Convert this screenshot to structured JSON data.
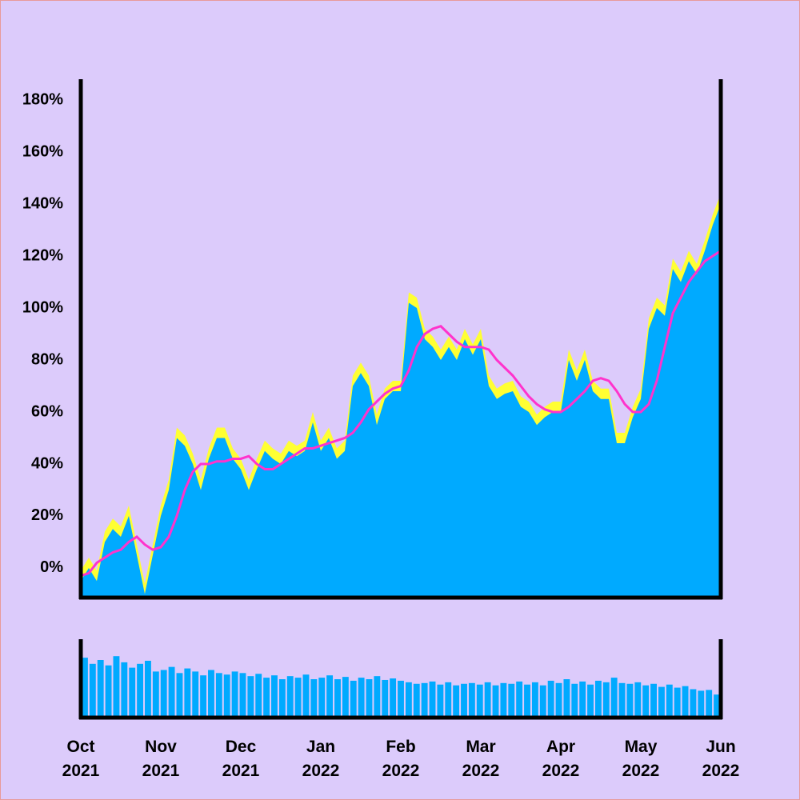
{
  "chart_data": [
    {
      "type": "area",
      "categories": [
        "Oct 2021",
        null,
        null,
        null,
        null,
        null,
        null,
        null,
        null,
        null,
        "Nov 2021",
        null,
        null,
        null,
        null,
        null,
        null,
        null,
        null,
        null,
        "Dec 2021",
        null,
        null,
        null,
        null,
        null,
        null,
        null,
        null,
        null,
        "Jan 2022",
        null,
        null,
        null,
        null,
        null,
        null,
        null,
        null,
        null,
        "Feb 2022",
        null,
        null,
        null,
        null,
        null,
        null,
        null,
        null,
        null,
        "Mar 2022",
        null,
        null,
        null,
        null,
        null,
        null,
        null,
        null,
        null,
        "Apr 2022",
        null,
        null,
        null,
        null,
        null,
        null,
        null,
        null,
        null,
        "May 2022",
        null,
        null,
        null,
        null,
        null,
        null,
        null,
        null,
        null,
        "Jun 2022"
      ],
      "series": [
        {
          "type": "area",
          "color": "#ffff33",
          "values": [
            -1,
            4,
            -1,
            14,
            19,
            16,
            24,
            9,
            -6,
            9,
            24,
            34,
            54,
            51,
            44,
            34,
            46,
            54,
            54,
            46,
            42,
            34,
            42,
            49,
            46,
            44,
            49,
            47,
            49,
            60,
            49,
            54,
            46,
            49,
            74,
            79,
            74,
            59,
            69,
            72,
            72,
            106,
            104,
            92,
            89,
            84,
            89,
            84,
            92,
            86,
            92,
            74,
            69,
            71,
            72,
            66,
            64,
            59,
            62,
            64,
            64,
            84,
            76,
            84,
            72,
            69,
            69,
            52,
            52,
            62,
            69,
            96,
            104,
            101,
            119,
            114,
            122,
            117,
            126,
            136,
            144
          ]
        },
        {
          "type": "area",
          "color": "#00aaff",
          "values": [
            -5,
            0,
            -5,
            10,
            15,
            12,
            20,
            5,
            -10,
            5,
            20,
            30,
            50,
            47,
            40,
            30,
            42,
            50,
            50,
            42,
            38,
            30,
            38,
            45,
            42,
            40,
            45,
            43,
            45,
            56,
            45,
            50,
            42,
            45,
            70,
            75,
            70,
            55,
            65,
            68,
            68,
            102,
            100,
            88,
            85,
            80,
            85,
            80,
            88,
            82,
            88,
            70,
            65,
            67,
            68,
            62,
            60,
            55,
            58,
            60,
            60,
            80,
            72,
            80,
            68,
            65,
            65,
            48,
            48,
            58,
            65,
            92,
            100,
            97,
            115,
            110,
            118,
            113,
            122,
            132,
            140
          ]
        },
        {
          "type": "line",
          "color": "#ff33cc",
          "values": [
            -3,
            -2,
            2,
            4,
            6,
            7,
            10,
            12,
            9,
            7,
            8,
            12,
            20,
            30,
            37,
            40,
            40,
            41,
            41,
            42,
            42,
            43,
            40,
            38,
            38,
            40,
            42,
            44,
            46,
            46,
            47,
            48,
            49,
            50,
            52,
            56,
            61,
            64,
            67,
            69,
            70,
            76,
            85,
            90,
            92,
            93,
            90,
            87,
            85,
            85,
            85,
            84,
            80,
            77,
            74,
            70,
            66,
            63,
            61,
            60,
            60,
            62,
            65,
            68,
            72,
            73,
            72,
            68,
            63,
            60,
            60,
            63,
            72,
            85,
            98,
            104,
            110,
            114,
            118,
            120,
            122
          ]
        }
      ],
      "ylim": [
        -11.4,
        187.4
      ],
      "yticks": [
        {
          "value": 0,
          "label": "0%"
        },
        {
          "value": 20,
          "label": "20%"
        },
        {
          "value": 40,
          "label": "40%"
        },
        {
          "value": 60,
          "label": "60%"
        },
        {
          "value": 80,
          "label": "80%"
        },
        {
          "value": 100,
          "label": "100%"
        },
        {
          "value": 120,
          "label": "120%"
        },
        {
          "value": 140,
          "label": "140%"
        },
        {
          "value": 160,
          "label": "160%"
        },
        {
          "value": 180,
          "label": "180%"
        }
      ]
    },
    {
      "type": "bar",
      "color": "#00aaff",
      "ylim": [
        0,
        100
      ],
      "values": [
        78,
        70,
        75,
        68,
        80,
        72,
        65,
        70,
        74,
        60,
        62,
        66,
        58,
        64,
        60,
        55,
        62,
        58,
        56,
        60,
        58,
        54,
        57,
        52,
        55,
        50,
        54,
        52,
        56,
        50,
        52,
        55,
        50,
        53,
        48,
        52,
        50,
        54,
        49,
        51,
        48,
        46,
        44,
        45,
        47,
        43,
        46,
        42,
        44,
        45,
        43,
        46,
        42,
        45,
        44,
        47,
        43,
        46,
        42,
        48,
        45,
        50,
        44,
        47,
        43,
        48,
        46,
        52,
        45,
        44,
        46,
        42,
        44,
        40,
        43,
        39,
        41,
        37,
        35,
        36,
        30
      ]
    }
  ]
}
